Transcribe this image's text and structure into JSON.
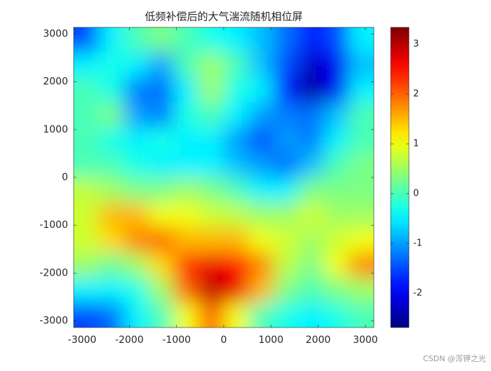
{
  "chart_data": {
    "type": "heatmap",
    "title": "低频补偿后的大气湍流随机相位屏",
    "xlim": [
      -3180,
      3180
    ],
    "ylim": [
      -3140,
      3140
    ],
    "xticks": [
      -3000,
      -2000,
      -1000,
      0,
      1000,
      2000,
      3000
    ],
    "yticks": [
      -3000,
      -2000,
      -1000,
      0,
      1000,
      2000,
      3000
    ],
    "clim": [
      -2.69,
      3.34
    ],
    "cticks": [
      -2,
      -1,
      0,
      1,
      2,
      3
    ],
    "colormap": "jet",
    "z": [
      [
        -1.5,
        -0.5,
        0,
        0.3,
        0,
        -0.3,
        -0.5,
        -0.8,
        -1.3,
        -1.8,
        -1.5,
        -0.5
      ],
      [
        -0.5,
        -0.3,
        -0.5,
        -1,
        0,
        0.5,
        0,
        -0.8,
        -1.5,
        -2.3,
        -2,
        -0.8
      ],
      [
        0,
        -0.3,
        -1.2,
        -1.3,
        -0.5,
        0.5,
        -0.3,
        -0.5,
        -1.8,
        -2.5,
        -2,
        -0.5
      ],
      [
        0,
        0.3,
        -1,
        -1.2,
        -0.3,
        0,
        -0.5,
        -1,
        -1.2,
        -1.3,
        -0.8,
        0
      ],
      [
        0,
        -0.3,
        -0.5,
        -0.3,
        -0.5,
        -0.5,
        -1,
        -1.5,
        -1,
        -1.2,
        -0.5,
        0
      ],
      [
        0,
        0,
        -0.3,
        -0.5,
        -0.5,
        -0.5,
        -0.8,
        -1,
        -1.3,
        -0.8,
        0,
        0.3
      ],
      [
        0.7,
        0.5,
        0.3,
        0.3,
        0.5,
        0.3,
        0,
        -0.5,
        -0.5,
        0.3,
        0.3,
        0.3
      ],
      [
        0.8,
        1.5,
        1.5,
        1,
        1,
        0.8,
        0.7,
        0.5,
        0.5,
        0.8,
        0.5,
        0.5
      ],
      [
        0.8,
        1.3,
        1.8,
        2,
        1.5,
        1.5,
        1.5,
        1,
        0.8,
        0.5,
        0.8,
        1
      ],
      [
        0.5,
        0.2,
        0.5,
        1.3,
        2.3,
        2.7,
        2.5,
        1.8,
        0.7,
        0.3,
        1,
        1.8
      ],
      [
        -0.5,
        -0.5,
        -0.3,
        0.5,
        2,
        3,
        2.7,
        1.5,
        0.3,
        0,
        0.3,
        0.5
      ],
      [
        -1.5,
        -1.3,
        -0.5,
        0,
        1,
        2,
        1,
        0,
        -0.3,
        -0.5,
        -0.3,
        0
      ]
    ]
  },
  "watermark": "CSDN @泻钾之光"
}
